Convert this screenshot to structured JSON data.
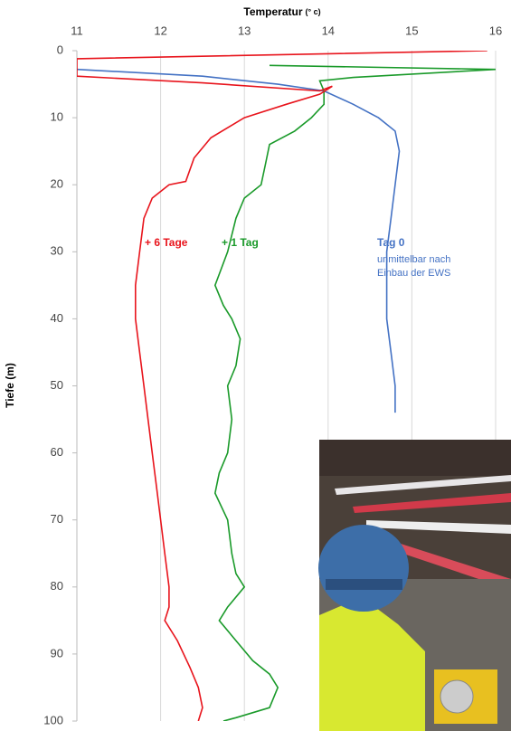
{
  "chart_data": {
    "type": "line",
    "x_label": "Temperatur",
    "x_label_unit": "(° c)",
    "y_label": "Tiefe (m)",
    "xlim": [
      11,
      16
    ],
    "xticks": [
      11,
      12,
      13,
      14,
      15,
      16
    ],
    "ylim": [
      0,
      100
    ],
    "yticks": [
      0,
      10,
      20,
      30,
      40,
      50,
      60,
      70,
      80,
      90,
      100
    ],
    "y_inverted": true,
    "grid": true,
    "series": [
      {
        "name": "Tag 0",
        "color": "#4472c4",
        "depth": [
          2.8,
          3.8,
          5,
          6,
          8,
          10,
          12,
          15,
          20,
          25,
          30,
          40,
          45,
          50,
          54
        ],
        "values": [
          11,
          12.5,
          13.4,
          13.95,
          14.3,
          14.6,
          14.8,
          14.85,
          14.8,
          14.75,
          14.7,
          14.7,
          14.75,
          14.8,
          14.8
        ]
      },
      {
        "name": "+ 1 Tag",
        "color": "#1a9a2a",
        "depth": [
          2.2,
          2.8,
          4,
          4.5,
          6,
          8,
          10,
          12,
          14,
          17,
          20,
          22,
          25,
          30,
          35,
          38,
          40,
          43,
          47,
          50,
          55,
          60,
          63,
          66,
          70,
          75,
          78,
          80,
          83,
          85,
          88,
          91,
          93,
          95,
          98,
          99.5,
          100
        ],
        "values": [
          13.3,
          16,
          14.3,
          13.9,
          13.95,
          13.95,
          13.8,
          13.6,
          13.3,
          13.25,
          13.2,
          13,
          12.9,
          12.8,
          12.65,
          12.75,
          12.85,
          12.95,
          12.9,
          12.8,
          12.85,
          12.8,
          12.7,
          12.65,
          12.8,
          12.85,
          12.9,
          13,
          12.8,
          12.7,
          12.9,
          13.1,
          13.3,
          13.4,
          13.3,
          12.9,
          12.75
        ]
      },
      {
        "name": "+ 6 Tage",
        "color": "#e8141c",
        "depth": [
          0,
          1.2,
          3.8,
          4.8,
          6,
          5.3,
          6.5,
          8,
          10,
          13,
          16,
          19.5,
          20,
          22,
          25,
          30,
          35,
          40,
          45,
          50,
          55,
          60,
          65,
          70,
          75,
          80,
          83,
          85,
          88,
          92,
          95,
          98,
          100
        ],
        "values": [
          15.9,
          11,
          11,
          12.5,
          13.9,
          14.05,
          13.9,
          13.5,
          13,
          12.6,
          12.4,
          12.3,
          12.1,
          11.9,
          11.8,
          11.75,
          11.7,
          11.7,
          11.75,
          11.8,
          11.85,
          11.9,
          11.95,
          12,
          12.05,
          12.1,
          12.1,
          12.05,
          12.2,
          12.35,
          12.45,
          12.5,
          12.45
        ]
      }
    ],
    "annotations": [
      "unmittelbar nach",
      "Einbau der EWS"
    ]
  }
}
